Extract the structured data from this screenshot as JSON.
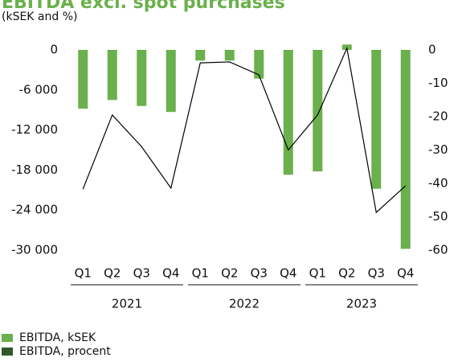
{
  "chart_data": {
    "type": "bar",
    "title": "EBITDA excl. spot purchases",
    "subtitle": "(kSEK and %)",
    "categories": [
      "Q1",
      "Q2",
      "Q3",
      "Q4",
      "Q1",
      "Q2",
      "Q3",
      "Q4",
      "Q1",
      "Q2",
      "Q3",
      "Q4"
    ],
    "x_groups": [
      "2021",
      "2022",
      "2023"
    ],
    "series": [
      {
        "name": "EBITDA, kSEK",
        "type": "bar",
        "axis": "y",
        "color": "#6ab04c",
        "values": [
          -8800,
          -7500,
          -8400,
          -9300,
          -1600,
          -1600,
          -4300,
          -18700,
          -18200,
          800,
          -20800,
          -29800
        ]
      },
      {
        "name": "EBITDA, procent",
        "type": "line",
        "axis": "y2",
        "color": "#2d5a27",
        "line_color": "#000000",
        "values": [
          -41.7,
          -19.5,
          -29,
          -41.4,
          -3.9,
          -3.6,
          -7.5,
          -30,
          -19.5,
          0.5,
          -48.7,
          -40.7
        ]
      }
    ],
    "ylim": [
      -30000,
      0
    ],
    "yticks": [
      0,
      {
        "value": -6000,
        "label": "-6 000"
      },
      {
        "value": -12000,
        "label": "-12 000"
      },
      {
        "value": -18000,
        "label": "-18 000"
      },
      {
        "value": -24000,
        "label": "-24 000"
      },
      {
        "value": -30000,
        "label": "-30 000"
      }
    ],
    "y2lim": [
      -60,
      0
    ],
    "y2ticks": [
      0,
      -10,
      -20,
      -30,
      -40,
      -50,
      -60
    ],
    "grid": false
  }
}
